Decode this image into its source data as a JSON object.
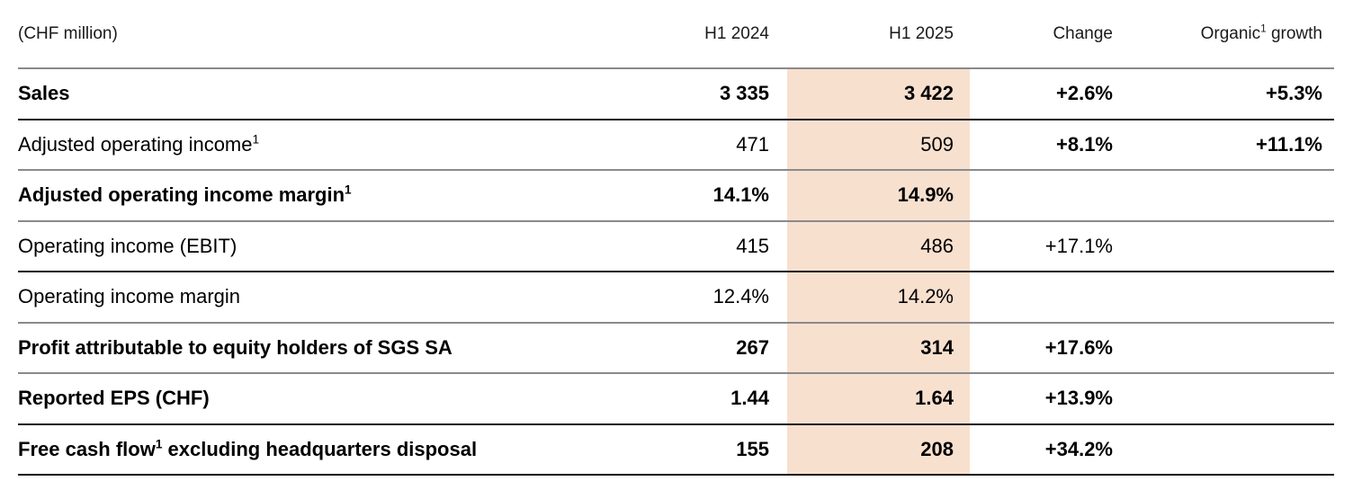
{
  "colors": {
    "highlight": "#f8e0cf",
    "divider_dark": "#141414",
    "divider_light": "#8a8a8a",
    "text": "#000000"
  },
  "header": {
    "unit_label": "(CHF million)",
    "h1_2024": "H1 2024",
    "h1_2025": "H1 2025",
    "change": "Change",
    "organic_pre": "Organic",
    "organic_sup": "1",
    "organic_post": " growth"
  },
  "rows": [
    {
      "label": "Sales",
      "h1_2024": "3 335",
      "h1_2025": "3 422",
      "change": "+2.6%",
      "organic": "+5.3%"
    },
    {
      "label": "Adjusted operating income",
      "label_sup": "1",
      "h1_2024": "471",
      "h1_2025": "509",
      "change": "+8.1%",
      "organic": "+11.1%"
    },
    {
      "label": "Adjusted operating income margin",
      "label_sup": "1",
      "h1_2024": "14.1%",
      "h1_2025": "14.9%",
      "change": "",
      "organic": ""
    },
    {
      "label": "Operating income (EBIT)",
      "h1_2024": "415",
      "h1_2025": "486",
      "change": "+17.1%",
      "organic": ""
    },
    {
      "label": "Operating income margin",
      "h1_2024": "12.4%",
      "h1_2025": "14.2%",
      "change": "",
      "organic": ""
    },
    {
      "label": "Profit attributable to equity holders of SGS SA",
      "h1_2024": "267",
      "h1_2025": "314",
      "change": "+17.6%",
      "organic": ""
    },
    {
      "label": "Reported EPS (CHF)",
      "h1_2024": "1.44",
      "h1_2025": "1.64",
      "change": "+13.9%",
      "organic": ""
    },
    {
      "label": "Free cash flow",
      "label_sup": "1",
      "label_post": " excluding headquarters disposal",
      "h1_2024": "155",
      "h1_2025": "208",
      "change": "+34.2%",
      "organic": ""
    }
  ]
}
